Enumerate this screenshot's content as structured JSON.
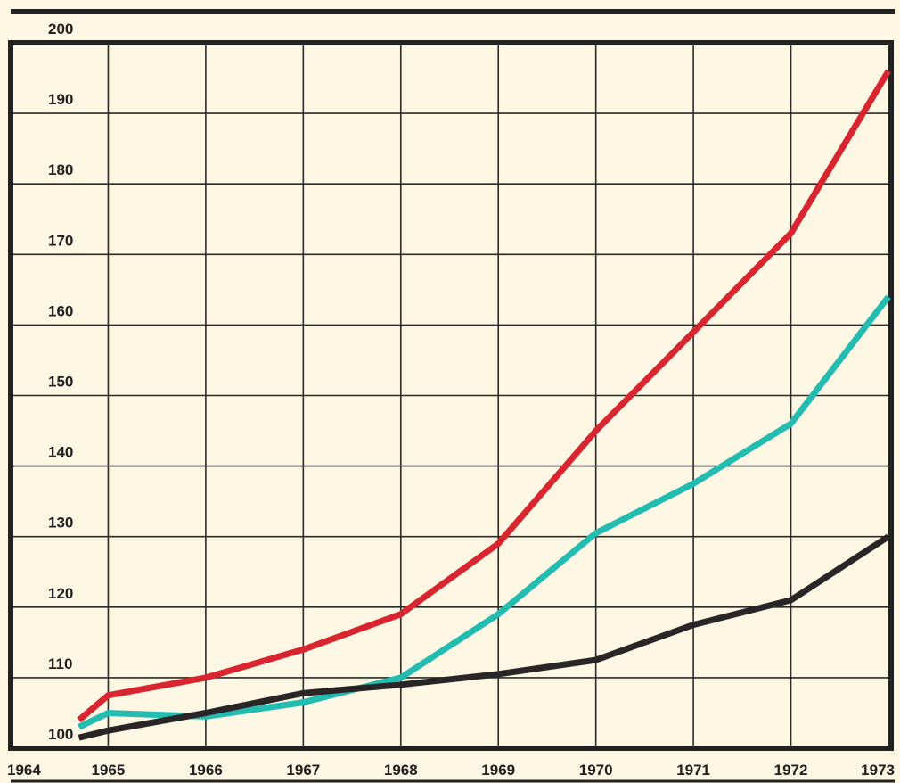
{
  "chart_data": {
    "type": "line",
    "title": "",
    "xlabel": "",
    "ylabel": "",
    "xlim": [
      1964,
      1973
    ],
    "ylim": [
      100,
      200
    ],
    "x_ticks": [
      "1964",
      "1965",
      "1966",
      "1967",
      "1968",
      "1969",
      "1970",
      "1971",
      "1972",
      "1973"
    ],
    "y_ticks": [
      "100",
      "110",
      "120",
      "130",
      "140",
      "150",
      "160",
      "170",
      "180",
      "190",
      "200"
    ],
    "grid": true,
    "legend": "none",
    "series": [
      {
        "color": "#d9252f",
        "x": [
          1964.7,
          1965,
          1966,
          1967,
          1968,
          1969,
          1970,
          1971,
          1972,
          1973
        ],
        "values": [
          104,
          107.5,
          110,
          114,
          119,
          129,
          145,
          159,
          173,
          196
        ]
      },
      {
        "color": "#23bcb1",
        "x": [
          1964.7,
          1965,
          1966,
          1967,
          1968,
          1969,
          1970,
          1971,
          1972,
          1973
        ],
        "values": [
          103,
          105,
          104.5,
          106.5,
          110,
          119,
          130.5,
          137.5,
          146,
          164
        ]
      },
      {
        "color": "#2a2628",
        "x": [
          1964.7,
          1965,
          1966,
          1967,
          1968,
          1969,
          1970,
          1971,
          1972,
          1973
        ],
        "values": [
          101.5,
          102.5,
          105,
          107.8,
          109,
          110.5,
          112.5,
          117.5,
          121,
          130
        ]
      }
    ]
  }
}
